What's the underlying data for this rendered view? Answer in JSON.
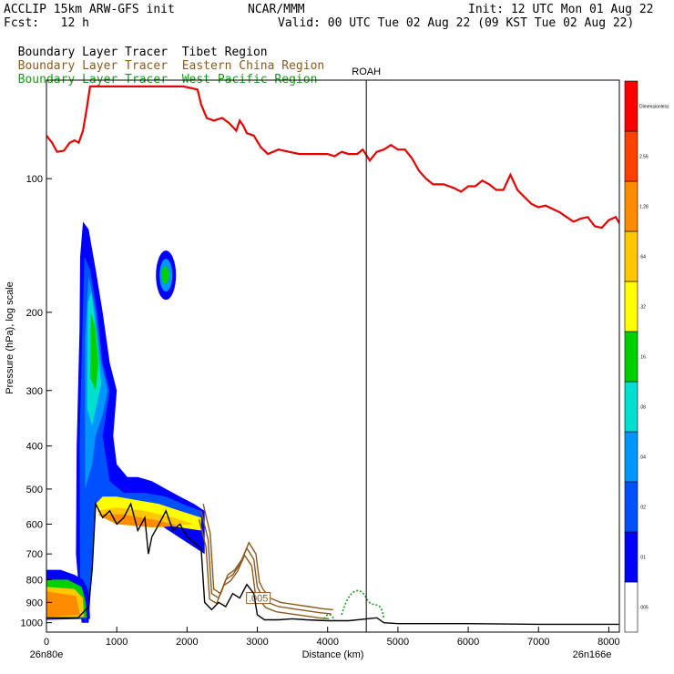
{
  "header": {
    "model": "ACCLIP 15km ARW-GFS init",
    "center": "NCAR/MMM",
    "init": "Init: 12 UTC Mon 01 Aug 22",
    "fcst": "Fcst:   12 h",
    "valid": "Valid: 00 UTC Tue 02 Aug 22 (09 KST Tue 02 Aug 22)"
  },
  "legend": [
    {
      "prefix": "Boundary Layer Tracer",
      "region": "Tibet Region",
      "prefix_color": "#000000",
      "region_color": "#000000"
    },
    {
      "prefix": "Boundary Layer Tracer",
      "region": "Eastern China Region",
      "prefix_color": "#8b5a1e",
      "region_color": "#8b5a1e"
    },
    {
      "prefix": "Boundary Layer Tracer",
      "region": "West Pacific Region",
      "prefix_color": "#1a9a1a",
      "region_color": "#1a9a1a"
    }
  ],
  "chart_data": {
    "type": "heatmap",
    "xlabel": "Distance (km)",
    "ylabel": "Pressure (hPa), log scale",
    "xlim": [
      0,
      8150
    ],
    "ylim": [
      1050,
      60
    ],
    "y_scale": "log",
    "x_ticks": [
      0,
      1000,
      2000,
      3000,
      4000,
      5000,
      6000,
      7000,
      8000
    ],
    "y_ticks": [
      100,
      200,
      300,
      400,
      500,
      600,
      700,
      800,
      900,
      1000
    ],
    "start_label": "26n80e",
    "end_label": "26n166e",
    "station": {
      "name": "ROAH",
      "x": 4550
    },
    "contour_label": ".005",
    "colorbar": {
      "levels": [
        ".005",
        ".01",
        ".02",
        ".04",
        ".08",
        ".16",
        ".32",
        ".64",
        "1.28",
        "2.56",
        "Dimensionless"
      ],
      "colors": [
        "#ffffff",
        "#0000ff",
        "#0050ff",
        "#0096ff",
        "#00e0d0",
        "#00d000",
        "#ffff00",
        "#ffc800",
        "#ff8c00",
        "#ff4000",
        "#ff0000"
      ]
    },
    "tropopause_red": [
      [
        0,
        80
      ],
      [
        80,
        83
      ],
      [
        150,
        87
      ],
      [
        250,
        86.5
      ],
      [
        330,
        83
      ],
      [
        400,
        82
      ],
      [
        460,
        83
      ],
      [
        520,
        78
      ],
      [
        570,
        70
      ],
      [
        620,
        62
      ],
      [
        1950,
        62
      ],
      [
        2150,
        63
      ],
      [
        2200,
        68
      ],
      [
        2280,
        73
      ],
      [
        2380,
        74
      ],
      [
        2500,
        73
      ],
      [
        2600,
        75
      ],
      [
        2700,
        78
      ],
      [
        2750,
        74
      ],
      [
        2800,
        76
      ],
      [
        2850,
        79
      ],
      [
        2950,
        80
      ],
      [
        3050,
        85
      ],
      [
        3150,
        88
      ],
      [
        3300,
        86
      ],
      [
        3450,
        87
      ],
      [
        3600,
        88
      ],
      [
        3800,
        88
      ],
      [
        4000,
        88
      ],
      [
        4100,
        89
      ],
      [
        4200,
        87
      ],
      [
        4300,
        88
      ],
      [
        4420,
        88
      ],
      [
        4500,
        86
      ],
      [
        4600,
        91
      ],
      [
        4700,
        87
      ],
      [
        4800,
        86
      ],
      [
        4900,
        84
      ],
      [
        5000,
        86
      ],
      [
        5100,
        86
      ],
      [
        5200,
        90
      ],
      [
        5300,
        96
      ],
      [
        5400,
        100
      ],
      [
        5500,
        103
      ],
      [
        5650,
        103
      ],
      [
        5800,
        105
      ],
      [
        5900,
        107
      ],
      [
        6000,
        104
      ],
      [
        6100,
        104
      ],
      [
        6200,
        101
      ],
      [
        6300,
        103
      ],
      [
        6400,
        106
      ],
      [
        6500,
        106
      ],
      [
        6600,
        98
      ],
      [
        6700,
        106
      ],
      [
        6800,
        110
      ],
      [
        6900,
        114
      ],
      [
        7000,
        116
      ],
      [
        7100,
        115
      ],
      [
        7200,
        117
      ],
      [
        7300,
        119
      ],
      [
        7400,
        122
      ],
      [
        7500,
        125
      ],
      [
        7600,
        123
      ],
      [
        7700,
        122
      ],
      [
        7800,
        128
      ],
      [
        7900,
        129
      ],
      [
        8000,
        124
      ],
      [
        8100,
        122
      ],
      [
        8150,
        126
      ]
    ],
    "terrain_black": [
      [
        0,
        975
      ],
      [
        450,
        975
      ],
      [
        600,
        920
      ],
      [
        650,
        760
      ],
      [
        700,
        540
      ],
      [
        800,
        580
      ],
      [
        900,
        560
      ],
      [
        1000,
        600
      ],
      [
        1100,
        580
      ],
      [
        1200,
        540
      ],
      [
        1300,
        620
      ],
      [
        1400,
        580
      ],
      [
        1450,
        700
      ],
      [
        1500,
        640
      ],
      [
        1600,
        600
      ],
      [
        1700,
        560
      ],
      [
        1800,
        620
      ],
      [
        1900,
        600
      ],
      [
        2000,
        640
      ],
      [
        2100,
        660
      ],
      [
        2200,
        680
      ],
      [
        2250,
        900
      ],
      [
        2350,
        935
      ],
      [
        2450,
        900
      ],
      [
        2550,
        920
      ],
      [
        2650,
        860
      ],
      [
        2750,
        880
      ],
      [
        2850,
        820
      ],
      [
        2950,
        860
      ],
      [
        3000,
        960
      ],
      [
        3100,
        985
      ],
      [
        3300,
        985
      ],
      [
        3500,
        980
      ],
      [
        3700,
        985
      ],
      [
        4000,
        990
      ],
      [
        4300,
        990
      ],
      [
        4700,
        975
      ],
      [
        4800,
        1000
      ],
      [
        5000,
        1005
      ],
      [
        6000,
        1005
      ],
      [
        7000,
        1008
      ],
      [
        8150,
        1008
      ]
    ]
  }
}
